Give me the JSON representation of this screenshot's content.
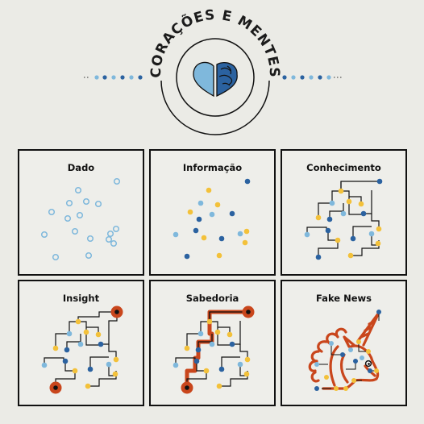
{
  "header": {
    "title": "CORAÇÕES E MENTES"
  },
  "panels": [
    {
      "id": "dado",
      "title": "Dado"
    },
    {
      "id": "informacao",
      "title": "Informação"
    },
    {
      "id": "conhecimento",
      "title": "Conhecimento"
    },
    {
      "id": "insight",
      "title": "Insight"
    },
    {
      "id": "sabedoria",
      "title": "Sabedoria"
    },
    {
      "id": "fake-news",
      "title": "Fake News"
    }
  ],
  "colors": {
    "background": "#ebebe6",
    "panel_bg": "#eeeeea",
    "border": "#111111",
    "light_blue": "#7fb8dc",
    "dark_blue": "#2b62a0",
    "yellow": "#f3c13a",
    "orange_red": "#c9461c"
  }
}
